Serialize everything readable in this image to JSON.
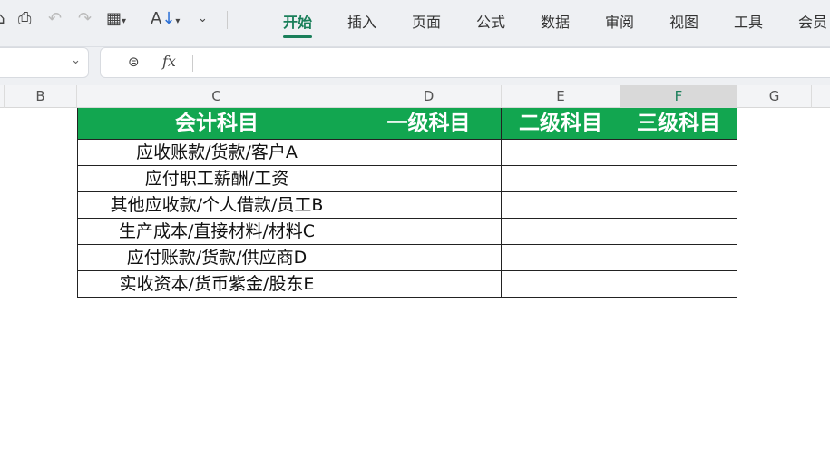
{
  "toolbar": {
    "icons": [
      "home-icon",
      "print-icon",
      "undo-icon",
      "redo-icon",
      "border-icon",
      "sort-icon",
      "more-icon"
    ],
    "tabs": [
      "开始",
      "插入",
      "页面",
      "公式",
      "数据",
      "审阅",
      "视图",
      "工具",
      "会员"
    ],
    "active_tab": "开始"
  },
  "formula_bar": {
    "fx": "fx",
    "value": ""
  },
  "columns": [
    "B",
    "C",
    "D",
    "E",
    "F",
    "G"
  ],
  "selected_column": "F",
  "table": {
    "headers": [
      "会计科目",
      "一级科目",
      "二级科目",
      "三级科目"
    ],
    "rows": [
      "应收账款/货款/客户A",
      "应付职工薪酬/工资",
      "其他应收款/个人借款/员工B",
      "生产成本/直接材料/材料C",
      "应付账款/货款/供应商D",
      "实收资本/货币紫金/股东E"
    ]
  },
  "colors": {
    "header_green": "#12a650",
    "accent": "#1a7f5a"
  }
}
